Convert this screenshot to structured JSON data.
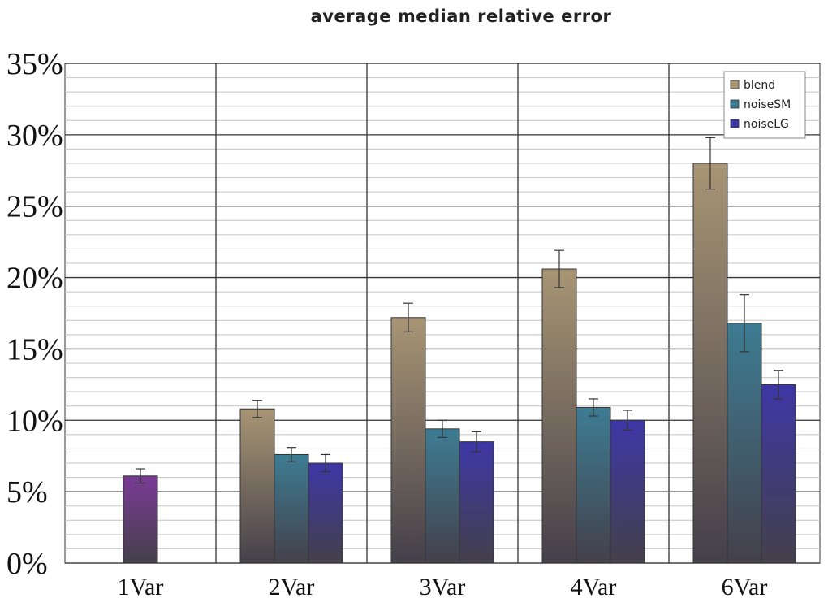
{
  "chart_data": {
    "type": "bar",
    "title": "average median relative error",
    "categories": [
      "1Var",
      "2Var",
      "3Var",
      "4Var",
      "6Var"
    ],
    "y_ticks": [
      "0%",
      "5%",
      "10%",
      "15%",
      "20%",
      "25%",
      "30%",
      "35%"
    ],
    "ylim": [
      0,
      35
    ],
    "grid": true,
    "legend_position": "top-right",
    "series": [
      {
        "name": "blend",
        "color": "#a89574",
        "values": [
          null,
          10.8,
          17.2,
          20.6,
          28.0
        ],
        "error": [
          null,
          0.6,
          1.0,
          1.3,
          1.8
        ]
      },
      {
        "name": "noiseSM",
        "color": "#3d7c93",
        "values": [
          null,
          7.6,
          9.4,
          10.9,
          16.8
        ],
        "error": [
          null,
          0.5,
          0.6,
          0.6,
          2.0
        ]
      },
      {
        "name": "noiseLG",
        "color": "#3d37a6",
        "values": [
          null,
          7.0,
          8.5,
          10.0,
          12.5
        ],
        "error": [
          null,
          0.6,
          0.7,
          0.7,
          1.0
        ]
      }
    ],
    "single_bars": [
      {
        "category": "1Var",
        "value": 6.1,
        "error": 0.5,
        "color": "#7a3a95"
      }
    ]
  }
}
